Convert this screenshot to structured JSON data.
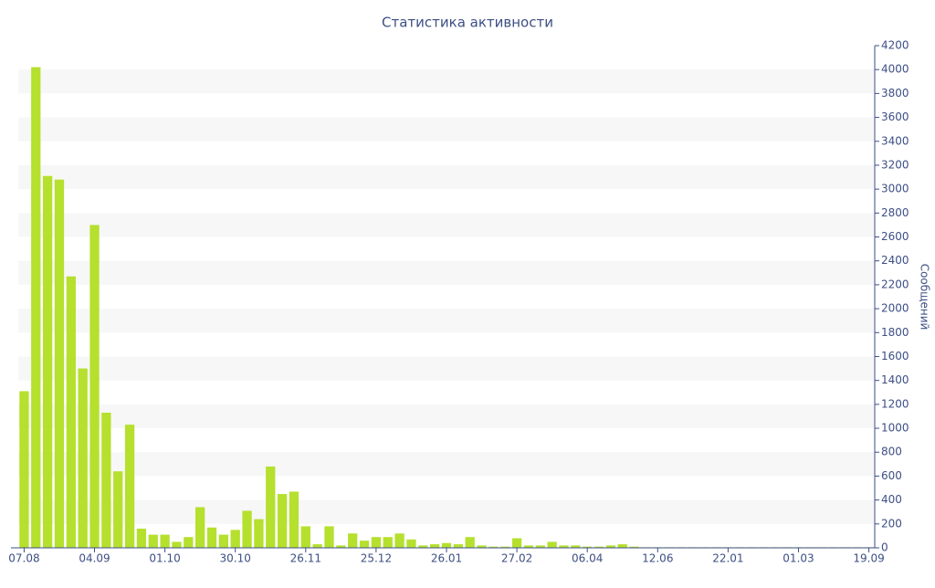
{
  "chart_data": {
    "type": "bar",
    "title": "Статистика активности",
    "y_label": "Сообщений",
    "categories": [
      "07.08",
      null,
      null,
      null,
      null,
      null,
      "04.09",
      null,
      null,
      null,
      null,
      null,
      "01.10",
      null,
      null,
      null,
      null,
      null,
      "30.10",
      null,
      null,
      null,
      null,
      null,
      "26.11",
      null,
      null,
      null,
      null,
      null,
      "25.12",
      null,
      null,
      null,
      null,
      null,
      "26.01",
      null,
      null,
      null,
      null,
      null,
      "27.02",
      null,
      null,
      null,
      null,
      null,
      "06.04",
      null,
      null,
      null,
      null,
      null,
      "12.06",
      null,
      null,
      null,
      null,
      null,
      "22.01",
      null,
      null,
      null,
      null,
      null,
      "01.03",
      null,
      null,
      null,
      null,
      null,
      "19.09"
    ],
    "values": [
      1310,
      4020,
      3110,
      3080,
      2270,
      1500,
      2700,
      1130,
      640,
      1030,
      160,
      110,
      110,
      50,
      90,
      340,
      170,
      110,
      150,
      310,
      240,
      680,
      450,
      470,
      180,
      30,
      180,
      20,
      120,
      60,
      90,
      90,
      120,
      70,
      20,
      30,
      40,
      30,
      90,
      20,
      10,
      10,
      80,
      20,
      20,
      50,
      20,
      20,
      10,
      10,
      20,
      30,
      10,
      5,
      5,
      5,
      5,
      5,
      5,
      5,
      5,
      5,
      5,
      5,
      5,
      5,
      5,
      5,
      5,
      5,
      5,
      5,
      5
    ],
    "color": "#b5e02e",
    "ylim": [
      0,
      4200
    ],
    "yticks": [
      0,
      200,
      400,
      600,
      800,
      1000,
      1200,
      1400,
      1600,
      1800,
      2000,
      2200,
      2400,
      2600,
      2800,
      3000,
      3200,
      3400,
      3600,
      3800,
      4000,
      4200
    ],
    "grid": true
  }
}
